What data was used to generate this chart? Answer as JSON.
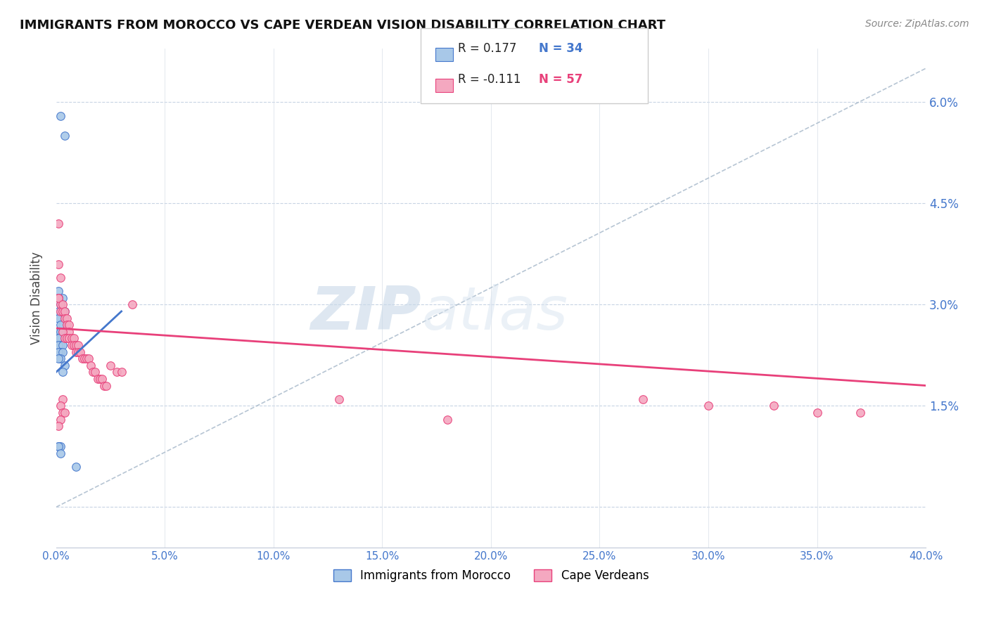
{
  "title": "IMMIGRANTS FROM MOROCCO VS CAPE VERDEAN VISION DISABILITY CORRELATION CHART",
  "source": "Source: ZipAtlas.com",
  "ylabel": "Vision Disability",
  "xlim": [
    0.0,
    0.4
  ],
  "ylim": [
    -0.006,
    0.068
  ],
  "legend_r1": "R = 0.177",
  "legend_n1": "N = 34",
  "legend_r2": "R = -0.111",
  "legend_n2": "N = 57",
  "series1_color": "#a8c8e8",
  "series2_color": "#f4a8c0",
  "trend1_color": "#4477cc",
  "trend2_color": "#e8407a",
  "dashed_color": "#aabbcc",
  "watermark_zip": "ZIP",
  "watermark_atlas": "atlas",
  "morocco_x": [
    0.002,
    0.004,
    0.009,
    0.001,
    0.003,
    0.001,
    0.002,
    0.003,
    0.004,
    0.001,
    0.002,
    0.001,
    0.003,
    0.002,
    0.001,
    0.002,
    0.003,
    0.001,
    0.002,
    0.001,
    0.002,
    0.001,
    0.003,
    0.002,
    0.001,
    0.003,
    0.002,
    0.001,
    0.004,
    0.003,
    0.001,
    0.002,
    0.001,
    0.002
  ],
  "morocco_y": [
    0.058,
    0.055,
    0.006,
    0.032,
    0.031,
    0.031,
    0.03,
    0.029,
    0.029,
    0.029,
    0.028,
    0.028,
    0.027,
    0.027,
    0.026,
    0.026,
    0.026,
    0.025,
    0.025,
    0.025,
    0.024,
    0.024,
    0.024,
    0.023,
    0.023,
    0.023,
    0.022,
    0.022,
    0.021,
    0.02,
    0.009,
    0.009,
    0.009,
    0.008
  ],
  "morocco_trend_x": [
    0.0,
    0.03
  ],
  "morocco_trend_y": [
    0.02,
    0.029
  ],
  "capeverde_x": [
    0.001,
    0.001,
    0.002,
    0.001,
    0.002,
    0.001,
    0.002,
    0.003,
    0.003,
    0.004,
    0.004,
    0.005,
    0.005,
    0.006,
    0.006,
    0.003,
    0.004,
    0.005,
    0.006,
    0.007,
    0.007,
    0.008,
    0.008,
    0.009,
    0.009,
    0.01,
    0.01,
    0.011,
    0.012,
    0.013,
    0.014,
    0.015,
    0.016,
    0.017,
    0.018,
    0.019,
    0.02,
    0.021,
    0.022,
    0.023,
    0.025,
    0.028,
    0.03,
    0.035,
    0.003,
    0.002,
    0.003,
    0.004,
    0.002,
    0.001,
    0.13,
    0.18,
    0.27,
    0.3,
    0.33,
    0.35,
    0.37
  ],
  "capeverde_y": [
    0.042,
    0.036,
    0.034,
    0.031,
    0.03,
    0.031,
    0.029,
    0.029,
    0.03,
    0.029,
    0.028,
    0.028,
    0.027,
    0.027,
    0.026,
    0.026,
    0.025,
    0.025,
    0.025,
    0.025,
    0.024,
    0.025,
    0.024,
    0.024,
    0.023,
    0.024,
    0.023,
    0.023,
    0.022,
    0.022,
    0.022,
    0.022,
    0.021,
    0.02,
    0.02,
    0.019,
    0.019,
    0.019,
    0.018,
    0.018,
    0.021,
    0.02,
    0.02,
    0.03,
    0.016,
    0.015,
    0.014,
    0.014,
    0.013,
    0.012,
    0.016,
    0.013,
    0.016,
    0.015,
    0.015,
    0.014,
    0.014
  ],
  "capeverde_trend_x": [
    0.0,
    0.4
  ],
  "capeverde_trend_y": [
    0.0265,
    0.018
  ]
}
